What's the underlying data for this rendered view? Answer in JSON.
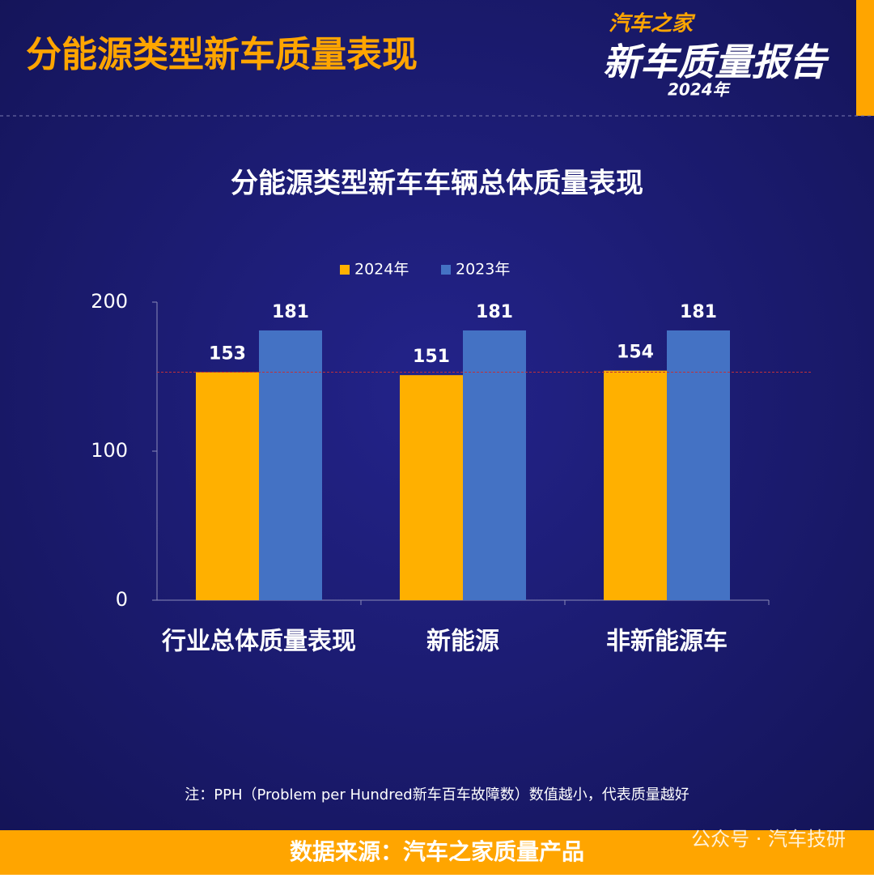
{
  "header": {
    "title": "分能源类型新车质量表现",
    "logo": {
      "brand": "汽车之家",
      "name": "新车质量报告",
      "year": "2024年"
    }
  },
  "chart_data": {
    "type": "bar",
    "title": "分能源类型新车车辆总体质量表现",
    "categories": [
      "行业总体质量表现",
      "新能源",
      "非新能源车"
    ],
    "series": [
      {
        "name": "2024年",
        "color": "#ffb000",
        "values": [
          153,
          151,
          154
        ]
      },
      {
        "name": "2023年",
        "color": "#4472c4",
        "values": [
          181,
          181,
          181
        ]
      }
    ],
    "ylim": [
      0,
      200
    ],
    "yticks": [
      0,
      100,
      200
    ],
    "reference_line": 153,
    "legend": "top"
  },
  "note": "注：PPH（Problem per Hundred新车百车故障数）数值越小，代表质量越好",
  "footer": {
    "source": "数据来源：汽车之家质量产品",
    "watermark": "公众号 · 汽车技研"
  }
}
